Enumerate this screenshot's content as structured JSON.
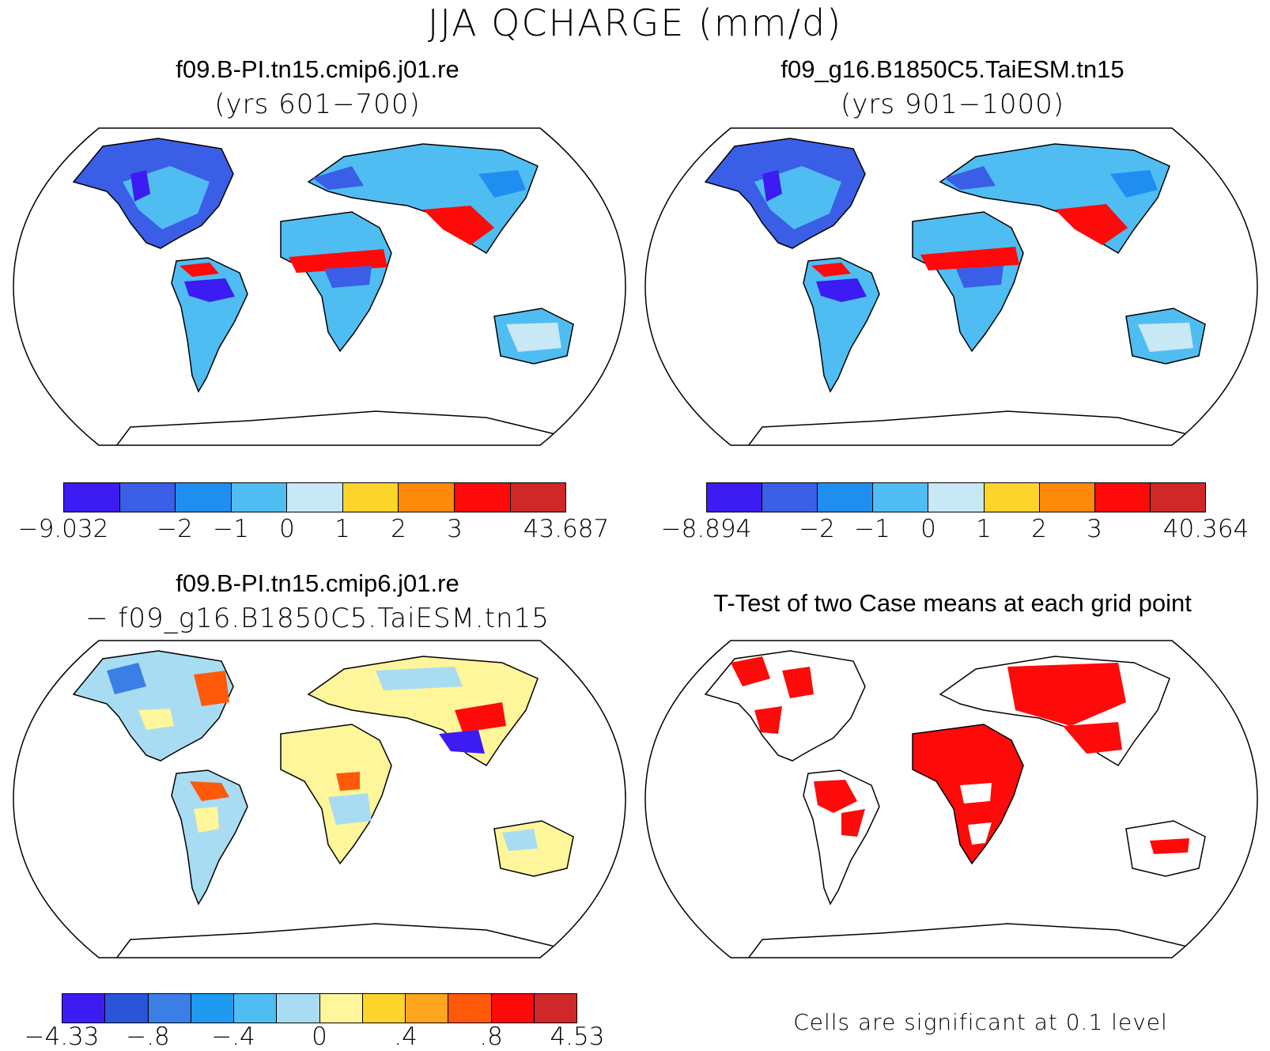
{
  "title": "JJA QCHARGE (mm/d)",
  "panels": [
    {
      "line1": "f09.B-PI.tn15.cmip6.j01.re",
      "line2": "(yrs 601−700)",
      "colorbar": {
        "colors": [
          "#3c1cf2",
          "#3a5ee6",
          "#1f8ef0",
          "#4fbdf2",
          "#c8e8f6",
          "#fdd42a",
          "#ff8a0a",
          "#ff0a0a",
          "#d02828"
        ],
        "labels": [
          "−9.032",
          "−2",
          "−1",
          "0",
          "1",
          "2",
          "3",
          "43.687"
        ]
      }
    },
    {
      "line1": "f09_g16.B1850C5.TaiESM.tn15",
      "line2": "(yrs 901−1000)",
      "colorbar": {
        "colors": [
          "#3c1cf2",
          "#3a5ee6",
          "#1f8ef0",
          "#4fbdf2",
          "#c8e8f6",
          "#fdd42a",
          "#ff8a0a",
          "#ff0a0a",
          "#d02828"
        ],
        "labels": [
          "−8.894",
          "−2",
          "−1",
          "0",
          "1",
          "2",
          "3",
          "40.364"
        ]
      }
    },
    {
      "line1": "f09.B-PI.tn15.cmip6.j01.re",
      "line2": "− f09_g16.B1850C5.TaiESM.tn15",
      "colorbar": {
        "colors": [
          "#3c1cf2",
          "#2a55d8",
          "#3a7ee6",
          "#1f9af0",
          "#4fbdf2",
          "#a8dcf2",
          "#fff59a",
          "#fdd42a",
          "#ffa51e",
          "#ff5a0a",
          "#ff0a0a",
          "#d02828"
        ],
        "labels": [
          "−4.33",
          "−.8",
          "−.4",
          "0",
          ".4",
          ".8",
          "4.53"
        ]
      }
    },
    {
      "line1": "T-Test of two Case means at each grid point",
      "note": "Cells are significant at 0.1 level"
    }
  ]
}
